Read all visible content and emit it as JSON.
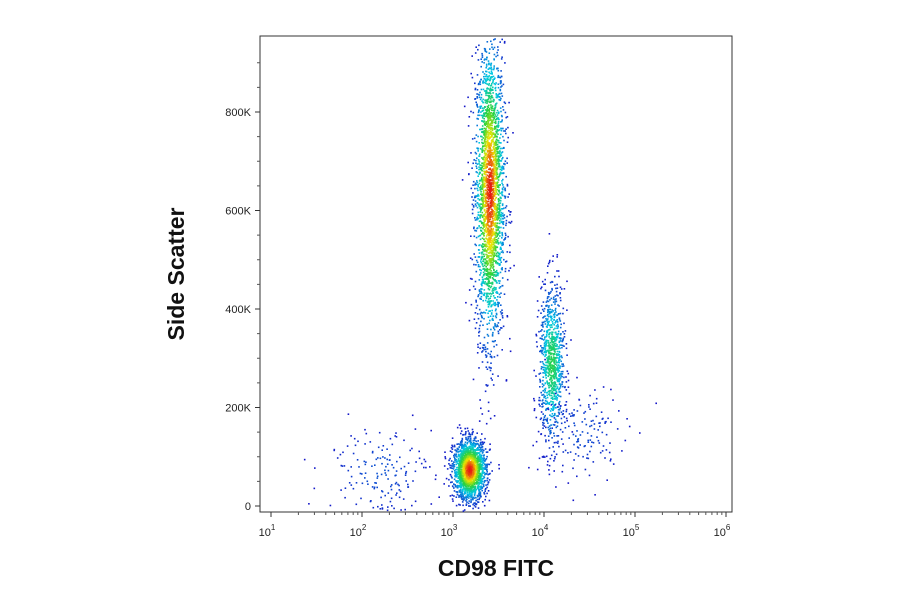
{
  "chart_data": {
    "type": "scatter",
    "title": "",
    "xlabel": "CD98 FITC",
    "ylabel": "Side Scatter",
    "x_scale": "log",
    "xlim": [
      10,
      1000000
    ],
    "ylim": [
      0,
      950000
    ],
    "x_ticks": [
      {
        "base": "10",
        "exp": "1",
        "value": 10
      },
      {
        "base": "10",
        "exp": "2",
        "value": 100
      },
      {
        "base": "10",
        "exp": "3",
        "value": 1000
      },
      {
        "base": "10",
        "exp": "4",
        "value": 10000
      },
      {
        "base": "10",
        "exp": "5",
        "value": 100000
      },
      {
        "base": "10",
        "exp": "6",
        "value": 1000000
      }
    ],
    "y_ticks": [
      {
        "label": "0",
        "value": 0
      },
      {
        "label": "200K",
        "value": 200000
      },
      {
        "label": "400K",
        "value": 400000
      },
      {
        "label": "600K",
        "value": 600000
      },
      {
        "label": "800K",
        "value": 800000
      }
    ],
    "grid": false,
    "color_map": "density (blue-cyan-green-yellow-red)",
    "populations": [
      {
        "x_center": 2500,
        "x_sd_decades": 0.08,
        "y_center": 640000,
        "y_sd": 150000,
        "count": 2600
      },
      {
        "x_center": 12000,
        "x_sd_decades": 0.07,
        "y_center": 290000,
        "y_sd": 80000,
        "count": 900
      },
      {
        "x_center": 1500,
        "x_sd_decades": 0.09,
        "y_center": 75000,
        "y_sd": 30000,
        "count": 1800
      },
      {
        "x_center": 150,
        "x_sd_decades": 0.3,
        "y_center": 70000,
        "y_sd": 50000,
        "count": 180
      },
      {
        "x_center": 25000,
        "x_sd_decades": 0.25,
        "y_center": 150000,
        "y_sd": 50000,
        "count": 160
      }
    ]
  }
}
